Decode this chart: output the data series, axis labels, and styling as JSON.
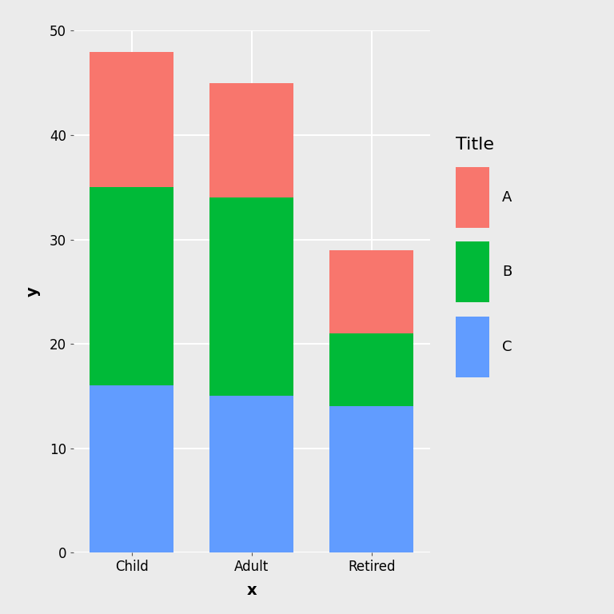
{
  "categories": [
    "Child",
    "Adult",
    "Retired"
  ],
  "segments": {
    "C": [
      16,
      15,
      14
    ],
    "B": [
      19,
      19,
      7
    ],
    "A": [
      13,
      11,
      8
    ]
  },
  "colors": {
    "A": "#F8766D",
    "B": "#00BA38",
    "C": "#619CFF"
  },
  "legend_title": "Title",
  "xlabel": "x",
  "ylabel": "y",
  "ylim": [
    0,
    50
  ],
  "yticks": [
    0,
    10,
    20,
    30,
    40,
    50
  ],
  "panel_background": "#EBEBEB",
  "fig_background": "#EBEBEB",
  "legend_background": "#FFFFFF",
  "grid_color": "#FFFFFF",
  "bar_width": 0.7,
  "title_fontsize": 16,
  "label_fontsize": 14,
  "tick_fontsize": 12,
  "legend_fontsize": 13
}
